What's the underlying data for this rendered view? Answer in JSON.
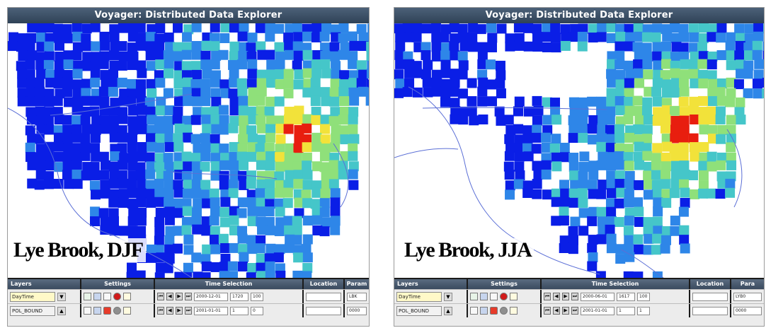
{
  "panels": [
    {
      "id": "left",
      "window_title": "Voyager: Distributed Data Explorer",
      "caption": "Lye Brook, DJF",
      "headers": {
        "layers": "Layers",
        "settings": "Settings",
        "time": "Time Selection",
        "location": "Location",
        "parameter": "Param"
      },
      "rows": [
        {
          "layer": "DayTime",
          "date": "2000-12-01",
          "time": "1720",
          "step": "100",
          "location": "",
          "param": "LBK"
        },
        {
          "layer": "POL_BOUND",
          "date": "2001-01-01",
          "time": "1",
          "step": "0",
          "location": "",
          "param": "0000"
        }
      ]
    },
    {
      "id": "right",
      "window_title": "Voyager: Distributed Data Explorer",
      "caption": "Lye Brook, JJA",
      "headers": {
        "layers": "Layers",
        "settings": "Settings",
        "time": "Time Selection",
        "location": "Location",
        "parameter": "Para"
      },
      "rows": [
        {
          "layer": "DayTime",
          "date": "2000-06-01",
          "time": "1617",
          "step": "100",
          "location": "",
          "param": "LYB0"
        },
        {
          "layer": "POL_BOUND",
          "date": "2001-01-01",
          "time": "1",
          "step": "1",
          "location": "",
          "param": "0000"
        }
      ]
    }
  ],
  "colors": {
    "low": "#0a1ee6",
    "mid_low": "#2e86e8",
    "mid": "#45c6c9",
    "mid_high": "#8fe07a",
    "high": "#f2e23a",
    "peak": "#e81e0f",
    "titlebar": "#3a4d63",
    "coastline": "#5b6fd6"
  }
}
